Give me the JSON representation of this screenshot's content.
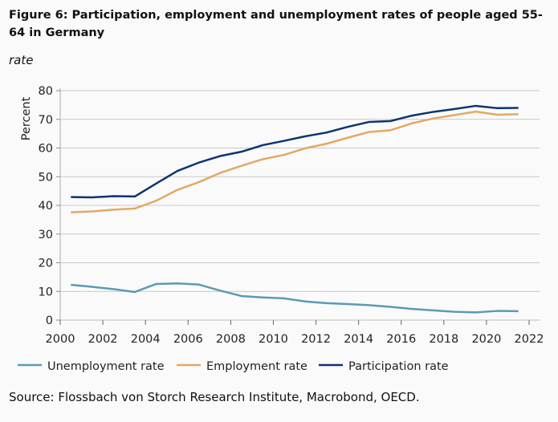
{
  "title": "Figure 6: Participation, employment and unemployment rates of people aged 55-64 in Germany",
  "subtitle": "rate",
  "source": "Source: Flossbach von Storch Research Institute, Macrobond, OECD.",
  "chart_data": {
    "type": "line",
    "title": "Figure 6: Participation, employment and unemployment rates of people aged 55-64 in Germany",
    "ylabel": "Percent",
    "xlabel": "",
    "xlim": [
      2000,
      2022
    ],
    "ylim": [
      0,
      80
    ],
    "xticks": [
      2000,
      2002,
      2004,
      2006,
      2008,
      2010,
      2012,
      2014,
      2016,
      2018,
      2020,
      2022
    ],
    "yticks": [
      0,
      10,
      20,
      30,
      40,
      50,
      60,
      70,
      80
    ],
    "grid": "horizontal",
    "legend": "bottom",
    "x": [
      2000,
      2001,
      2002,
      2003,
      2004,
      2005,
      2006,
      2007,
      2008,
      2009,
      2010,
      2011,
      2012,
      2013,
      2014,
      2015,
      2016,
      2017,
      2018,
      2019,
      2020,
      2021
    ],
    "series": [
      {
        "name": "Unemployment rate",
        "color": "#5b9ab5",
        "values": [
          12.3,
          11.6,
          10.8,
          9.8,
          12.6,
          12.8,
          12.4,
          10.3,
          8.4,
          7.9,
          7.6,
          6.5,
          5.9,
          5.6,
          5.2,
          4.6,
          3.9,
          3.4,
          2.9,
          2.7,
          3.2,
          3.1
        ]
      },
      {
        "name": "Employment rate",
        "color": "#e3a866",
        "values": [
          37.6,
          37.9,
          38.5,
          38.9,
          41.6,
          45.4,
          48.1,
          51.3,
          53.8,
          56.1,
          57.6,
          59.9,
          61.5,
          63.6,
          65.6,
          66.2,
          68.6,
          70.3,
          71.5,
          72.7,
          71.6,
          71.8
        ]
      },
      {
        "name": "Participation rate",
        "color": "#0b3470",
        "values": [
          42.9,
          42.8,
          43.2,
          43.1,
          47.6,
          52.0,
          54.9,
          57.2,
          58.7,
          61.0,
          62.5,
          64.1,
          65.4,
          67.4,
          69.1,
          69.4,
          71.3,
          72.6,
          73.6,
          74.7,
          73.9,
          74.0
        ]
      }
    ]
  }
}
